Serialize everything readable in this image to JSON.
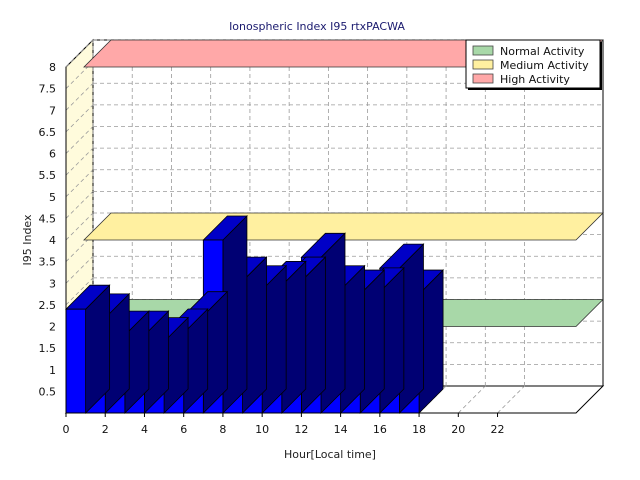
{
  "chart_data": {
    "type": "bar",
    "title": "Ionospheric Index I95 rtxPACWA",
    "xlabel": "Hour[Local time]",
    "ylabel": "I95 Index",
    "xlim": [
      0,
      26
    ],
    "ylim": [
      0,
      8
    ],
    "x_ticks": [
      "0",
      "2",
      "4",
      "6",
      "8",
      "10",
      "12",
      "14",
      "16",
      "18",
      "20",
      "22"
    ],
    "y_ticks": [
      "0.5",
      "1",
      "1.5",
      "2",
      "2.5",
      "3",
      "3.5",
      "4",
      "4.5",
      "5",
      "5.5",
      "6",
      "6.5",
      "7",
      "7.5",
      "8"
    ],
    "x": [
      0,
      1,
      2,
      3,
      4,
      5,
      6,
      7,
      8,
      9,
      10,
      11,
      12,
      13,
      14,
      15,
      16,
      17
    ],
    "values": [
      2.4,
      2.2,
      1.8,
      1.8,
      1.65,
      1.85,
      2.25,
      4.0,
      3.05,
      2.85,
      2.95,
      3.05,
      3.6,
      2.85,
      2.75,
      2.8,
      3.35,
      2.75
    ],
    "bands": [
      {
        "name": "Normal Activity",
        "value": 2.0,
        "color": "#a8d8a8"
      },
      {
        "name": "Medium Activity",
        "value": 4.0,
        "color": "#fff0a0"
      },
      {
        "name": "High Activity",
        "value": 8.0,
        "color": "#ffa8a8"
      }
    ],
    "bar_color": "#0000ff",
    "legend_position": "top-right",
    "grid": true
  }
}
